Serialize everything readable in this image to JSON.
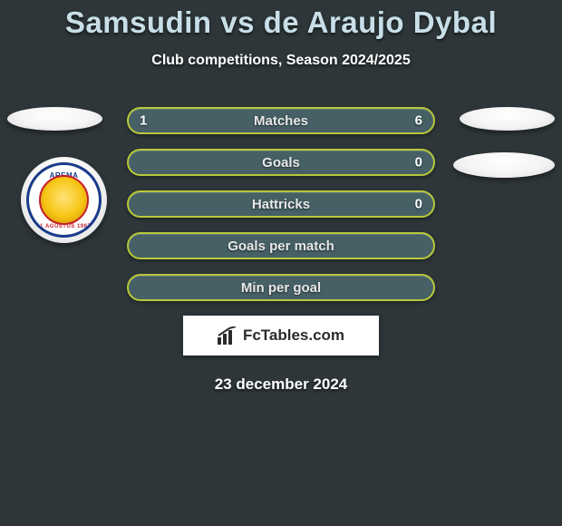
{
  "title": {
    "text": "Samsudin vs de Araujo Dybal",
    "color": "#c8dfe8",
    "fontsize": 33
  },
  "subtitle": {
    "text": "Club competitions, Season 2024/2025",
    "color": "#ffffff",
    "fontsize": 16
  },
  "background_color": "#2e3639",
  "date": "23 december 2024",
  "attribution": "FcTables.com",
  "badge": {
    "top_text": "AREMA",
    "bottom_text": "11 AGUSTUS 1987",
    "ring_color": "#1b3a8a",
    "inner_border": "#c41e2a"
  },
  "bars": [
    {
      "label": "Matches",
      "left": "1",
      "right": "6",
      "fill": "#466066",
      "border": "#b8c83a"
    },
    {
      "label": "Goals",
      "left": "",
      "right": "0",
      "fill": "#466066",
      "border": "#b8c83a"
    },
    {
      "label": "Hattricks",
      "left": "",
      "right": "0",
      "fill": "#466066",
      "border": "#b8c83a"
    },
    {
      "label": "Goals per match",
      "left": "",
      "right": "",
      "fill": "#466066",
      "border": "#b8c83a"
    },
    {
      "label": "Min per goal",
      "left": "",
      "right": "",
      "fill": "#466066",
      "border": "#b8c83a"
    }
  ]
}
